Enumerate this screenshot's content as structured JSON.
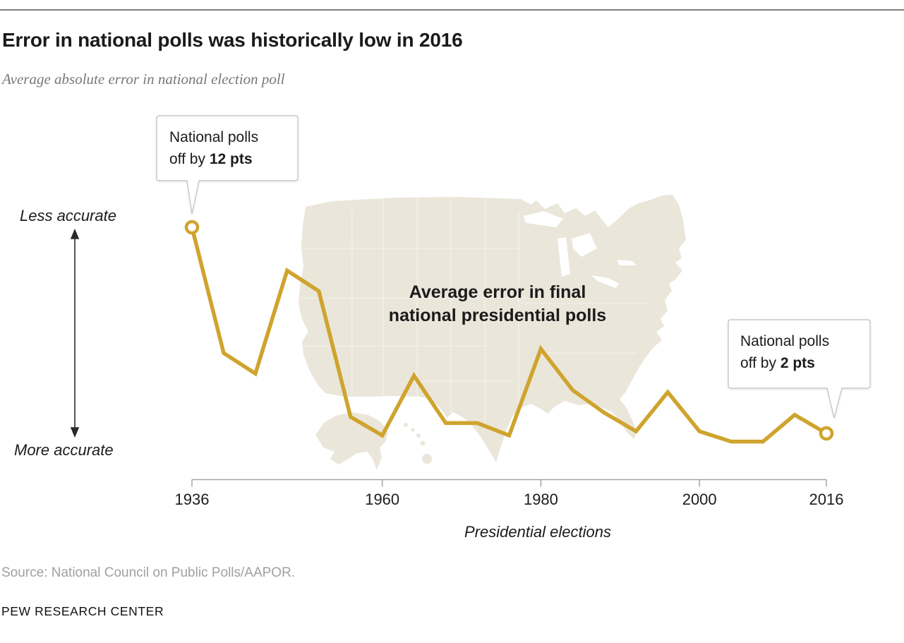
{
  "header": {
    "title": "Error in national polls was historically low in 2016",
    "subtitle": "Average absolute error in national election poll"
  },
  "chart_data": {
    "type": "line",
    "title": "Average error in final national presidential polls",
    "map_label_line1": "Average error in final",
    "map_label_line2": "national presidential polls",
    "x": [
      1936,
      1940,
      1944,
      1948,
      1952,
      1956,
      1960,
      1964,
      1968,
      1972,
      1976,
      1980,
      1984,
      1988,
      1992,
      1996,
      2000,
      2004,
      2008,
      2012,
      2016
    ],
    "values": [
      12.0,
      5.9,
      4.9,
      9.9,
      8.9,
      2.8,
      1.9,
      4.8,
      2.5,
      2.5,
      1.9,
      6.1,
      4.1,
      3.0,
      2.1,
      4.0,
      2.1,
      1.6,
      1.6,
      2.9,
      2.0
    ],
    "x_ticks": [
      "1936",
      "1960",
      "1980",
      "2000",
      "2016"
    ],
    "xlabel": "Presidential elections",
    "ylabel_direction_top": "Less accurate",
    "ylabel_direction_bottom": "More accurate",
    "ylim": [
      0,
      12.5
    ],
    "grid": false,
    "legend": "none",
    "line_color": "#cfa42e",
    "map_fill_color": "#eae6da",
    "annotations": [
      {
        "year": 1936,
        "value": 12,
        "line1": "National polls",
        "line2_prefix": "off by ",
        "line2_bold": "12 pts"
      },
      {
        "year": 2016,
        "value": 2,
        "line1": "National polls",
        "line2_prefix": "off by ",
        "line2_bold": "2 pts"
      }
    ]
  },
  "footer": {
    "source": "Source: National Council on Public Polls/AAPOR.",
    "wordmark": "PEW RESEARCH CENTER"
  }
}
